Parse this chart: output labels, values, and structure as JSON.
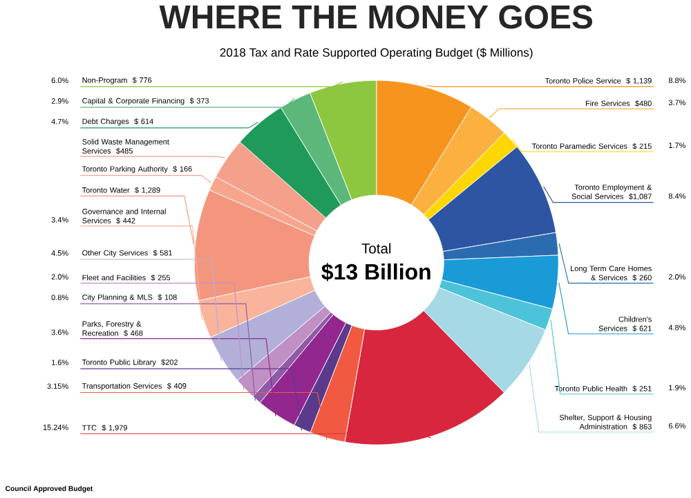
{
  "chart_data": {
    "type": "donut",
    "title": "WHERE THE MONEY GOES",
    "subtitle": "2018 Tax and Rate Supported Operating Budget ($ Millions)",
    "categories": [
      "Toronto Police Service",
      "Fire Services",
      "Toronto Paramedic Services",
      "Toronto Employment & Social Services",
      "Long Term Care Homes & Services",
      "Children's Services",
      "Toronto Public Health",
      "Shelter, Support & Housing Administration",
      "TTC",
      "Transportation Services",
      "Toronto Public Library",
      "Parks, Forestry & Recreation",
      "City Planning & MLS",
      "Fleet and Facilities",
      "Other City Services",
      "Governance and Internal Services",
      "Toronto Water",
      "Toronto Parking Authority",
      "Solid Waste Management Services",
      "Debt Charges",
      "Capital & Corporate Financing",
      "Non-Program"
    ],
    "values": [
      1139,
      480,
      215,
      1087,
      260,
      621,
      251,
      863,
      1979,
      409,
      202,
      468,
      108,
      255,
      581,
      442,
      1289,
      166,
      485,
      614,
      373,
      776
    ],
    "value_labels": [
      "$ 1,139",
      "$480",
      "$ 215",
      "$1,087",
      "$ 260",
      "$ 621",
      "$ 251",
      "$ 863",
      "$ 1,979",
      "$ 409",
      "$202",
      "$ 468",
      "$ 108",
      "$ 255",
      "$ 581",
      "$ 442",
      "$ 1,289",
      "$ 166",
      "$485",
      "$ 614",
      "$ 373",
      "$ 776"
    ],
    "colors": [
      "#f7941d",
      "#fbb040",
      "#ffd700",
      "#2e55a3",
      "#2b6cb0",
      "#1a9bd7",
      "#4cc3d9",
      "#a5d9e6",
      "#d7263d",
      "#f15a40",
      "#5b3a8c",
      "#92278f",
      "#8e5ba7",
      "#c08fc4",
      "#b2b0d8",
      "#f9b49b",
      "#f4967e",
      "#f7a58c",
      "#f5a08a",
      "#1f9a5a",
      "#5cb87a",
      "#8dc63f"
    ],
    "annotations": [
      "Total",
      "$13 Billion",
      "Council Approved Budget",
      {
        "text": "8.8%",
        "x": "Toronto Police Service"
      },
      {
        "text": "3.7%",
        "x": "Fire Services"
      },
      {
        "text": "1.7%",
        "x": "Toronto Paramedic Services"
      },
      {
        "text": "8.4%",
        "x": "Toronto Employment & Social Services"
      },
      {
        "text": "2.0%",
        "x": "Long Term Care Homes & Services"
      },
      {
        "text": "4.8%",
        "x": "Children's Services"
      },
      {
        "text": "1.9%",
        "x": "Toronto Public Health"
      },
      {
        "text": "6.6%",
        "x": "Shelter, Support & Housing Administration"
      },
      {
        "text": "15.24%",
        "x": "TTC"
      },
      {
        "text": "3.15%",
        "x": "Transportation Services"
      },
      {
        "text": "1.6%",
        "x": "Toronto Public Library"
      },
      {
        "text": "3.6%",
        "x": "Parks, Forestry & Recreation"
      },
      {
        "text": "0.8%",
        "x": "City Planning & MLS"
      },
      {
        "text": "2.0%",
        "x": "Fleet and Facilities"
      },
      {
        "text": "4.5%",
        "x": "Other City Services"
      },
      {
        "text": "3.4%",
        "x": "Governance and Internal Services"
      },
      {
        "text": "4.7%",
        "x": "Debt Charges"
      },
      {
        "text": "2.9%",
        "x": "Capital & Corporate Financing"
      },
      {
        "text": "6.0%",
        "x": "Non-Program"
      }
    ]
  }
}
